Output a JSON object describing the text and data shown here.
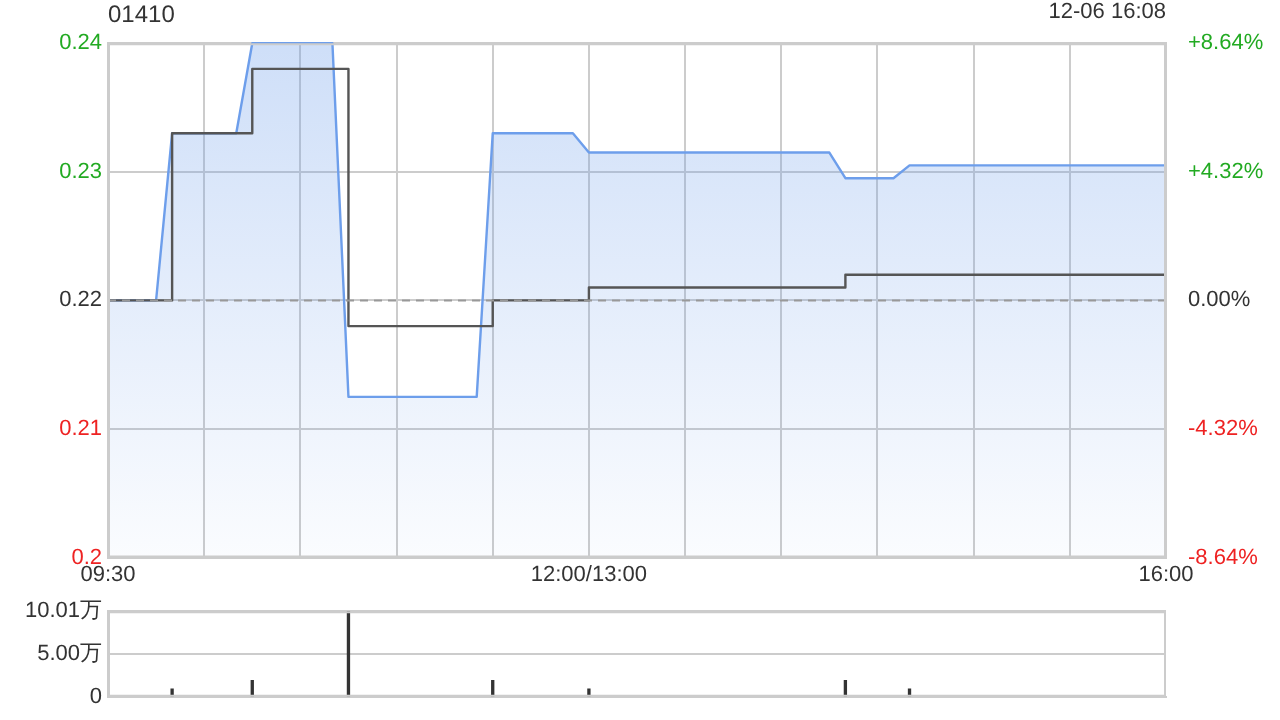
{
  "chart_data": [
    {
      "type": "step",
      "title": "01410",
      "annotations": [
        "12-06 16:08"
      ],
      "categories": [
        "09:30",
        null,
        null,
        null,
        null,
        null,
        null,
        null,
        null,
        null,
        null,
        null,
        null,
        null,
        null,
        null,
        null,
        null,
        null,
        null,
        null,
        null,
        null,
        null,
        null,
        null,
        null,
        null,
        null,
        null,
        "12:00/13:00",
        null,
        null,
        null,
        null,
        null,
        null,
        null,
        null,
        null,
        null,
        null,
        null,
        null,
        null,
        null,
        null,
        null,
        null,
        null,
        null,
        null,
        null,
        null,
        null,
        null,
        null,
        null,
        null,
        null,
        null,
        null,
        null,
        null,
        null,
        null,
        "16:00"
      ],
      "ylim": [
        0.2,
        0.24
      ],
      "yticks": [
        0.2,
        0.21,
        0.22,
        0.23,
        0.24
      ],
      "y2lim": [
        -8.64,
        8.64
      ],
      "y2ticks": [
        {
          "value": -8.64,
          "label": "-8.64%"
        },
        {
          "value": -4.32,
          "label": "-4.32%"
        },
        {
          "value": 0,
          "label": "0.00%"
        },
        {
          "value": 4.32,
          "label": "+4.32%"
        },
        {
          "value": 8.64,
          "label": "+8.64%"
        }
      ],
      "grid": true,
      "legend": false,
      "ref_lines": [
        {
          "axis": "y",
          "value": 0.22,
          "line_style": "dashed",
          "color": "#999999"
        }
      ],
      "series": [
        {
          "type": "area",
          "color": "#6d9eeb",
          "values": [
            0.22,
            0.22,
            0.22,
            0.22,
            0.233,
            0.233,
            0.233,
            0.233,
            0.233,
            0.24,
            0.24,
            0.24,
            0.24,
            0.24,
            0.24,
            0.2125,
            0.2125,
            0.2125,
            0.2125,
            0.2125,
            0.2125,
            0.2125,
            0.2125,
            0.2125,
            0.233,
            0.233,
            0.233,
            0.233,
            0.233,
            0.233,
            0.2315,
            0.2315,
            0.2315,
            0.2315,
            0.2315,
            0.2315,
            0.2315,
            0.2315,
            0.2315,
            0.2315,
            0.2315,
            0.2315,
            0.2315,
            0.2315,
            0.2315,
            0.2315,
            0.2295,
            0.2295,
            0.2295,
            0.2295,
            0.2305,
            0.2305,
            0.2305,
            0.2305,
            0.2305,
            0.2305,
            0.2305,
            0.2305,
            0.2305,
            0.2305,
            0.2305,
            0.2305,
            0.2305,
            0.2305,
            0.2305,
            0.2305,
            0.2305
          ]
        },
        {
          "type": "step",
          "color": "#555555",
          "values": [
            0.22,
            0.22,
            0.22,
            0.22,
            0.233,
            0.233,
            0.233,
            0.233,
            0.233,
            0.238,
            0.238,
            0.238,
            0.238,
            0.238,
            0.238,
            0.218,
            0.218,
            0.218,
            0.218,
            0.218,
            0.218,
            0.218,
            0.218,
            0.218,
            0.22,
            0.22,
            0.22,
            0.22,
            0.22,
            0.22,
            0.221,
            0.221,
            0.221,
            0.221,
            0.221,
            0.221,
            0.221,
            0.221,
            0.221,
            0.221,
            0.221,
            0.221,
            0.221,
            0.221,
            0.221,
            0.221,
            0.222,
            0.222,
            0.222,
            0.222,
            0.222,
            0.222,
            0.222,
            0.222,
            0.222,
            0.222,
            0.222,
            0.222,
            0.222,
            0.222,
            0.222,
            0.222,
            0.222,
            0.222,
            0.222,
            0.222,
            0.222
          ]
        }
      ]
    },
    {
      "type": "bar",
      "categories": [
        null,
        null,
        null,
        null,
        null,
        null,
        null,
        null,
        null,
        null,
        null,
        null,
        null,
        null,
        null,
        null,
        null,
        null,
        null,
        null,
        null,
        null,
        null,
        null,
        null,
        null,
        null,
        null,
        null,
        null,
        null,
        null,
        null,
        null,
        null,
        null,
        null,
        null,
        null,
        null,
        null,
        null,
        null,
        null,
        null,
        null,
        null,
        null,
        null,
        null,
        null,
        null,
        null,
        null,
        null,
        null,
        null,
        null,
        null,
        null,
        null,
        null,
        null,
        null,
        null,
        null,
        null
      ],
      "ylim": [
        0,
        10.01
      ],
      "yticks": [
        {
          "value": 0,
          "label": "0"
        },
        {
          "value": 5,
          "label": "5.00万"
        },
        {
          "value": 10.01,
          "label": "10.01万"
        }
      ],
      "tick_labels": "y",
      "grid": "y",
      "legend": false,
      "series": [
        {
          "color": "#333333",
          "values": [
            null,
            null,
            null,
            null,
            0.9,
            null,
            null,
            null,
            null,
            1.9,
            null,
            null,
            null,
            null,
            null,
            10.01,
            null,
            null,
            null,
            null,
            null,
            null,
            null,
            null,
            1.9,
            null,
            null,
            null,
            null,
            null,
            0.9,
            null,
            null,
            null,
            null,
            null,
            null,
            null,
            null,
            null,
            null,
            null,
            null,
            null,
            null,
            null,
            1.9,
            null,
            null,
            null,
            0.9,
            null,
            null,
            null,
            null,
            null,
            null,
            null,
            null,
            null,
            null,
            null,
            null,
            null,
            null,
            null,
            null
          ]
        }
      ]
    }
  ]
}
